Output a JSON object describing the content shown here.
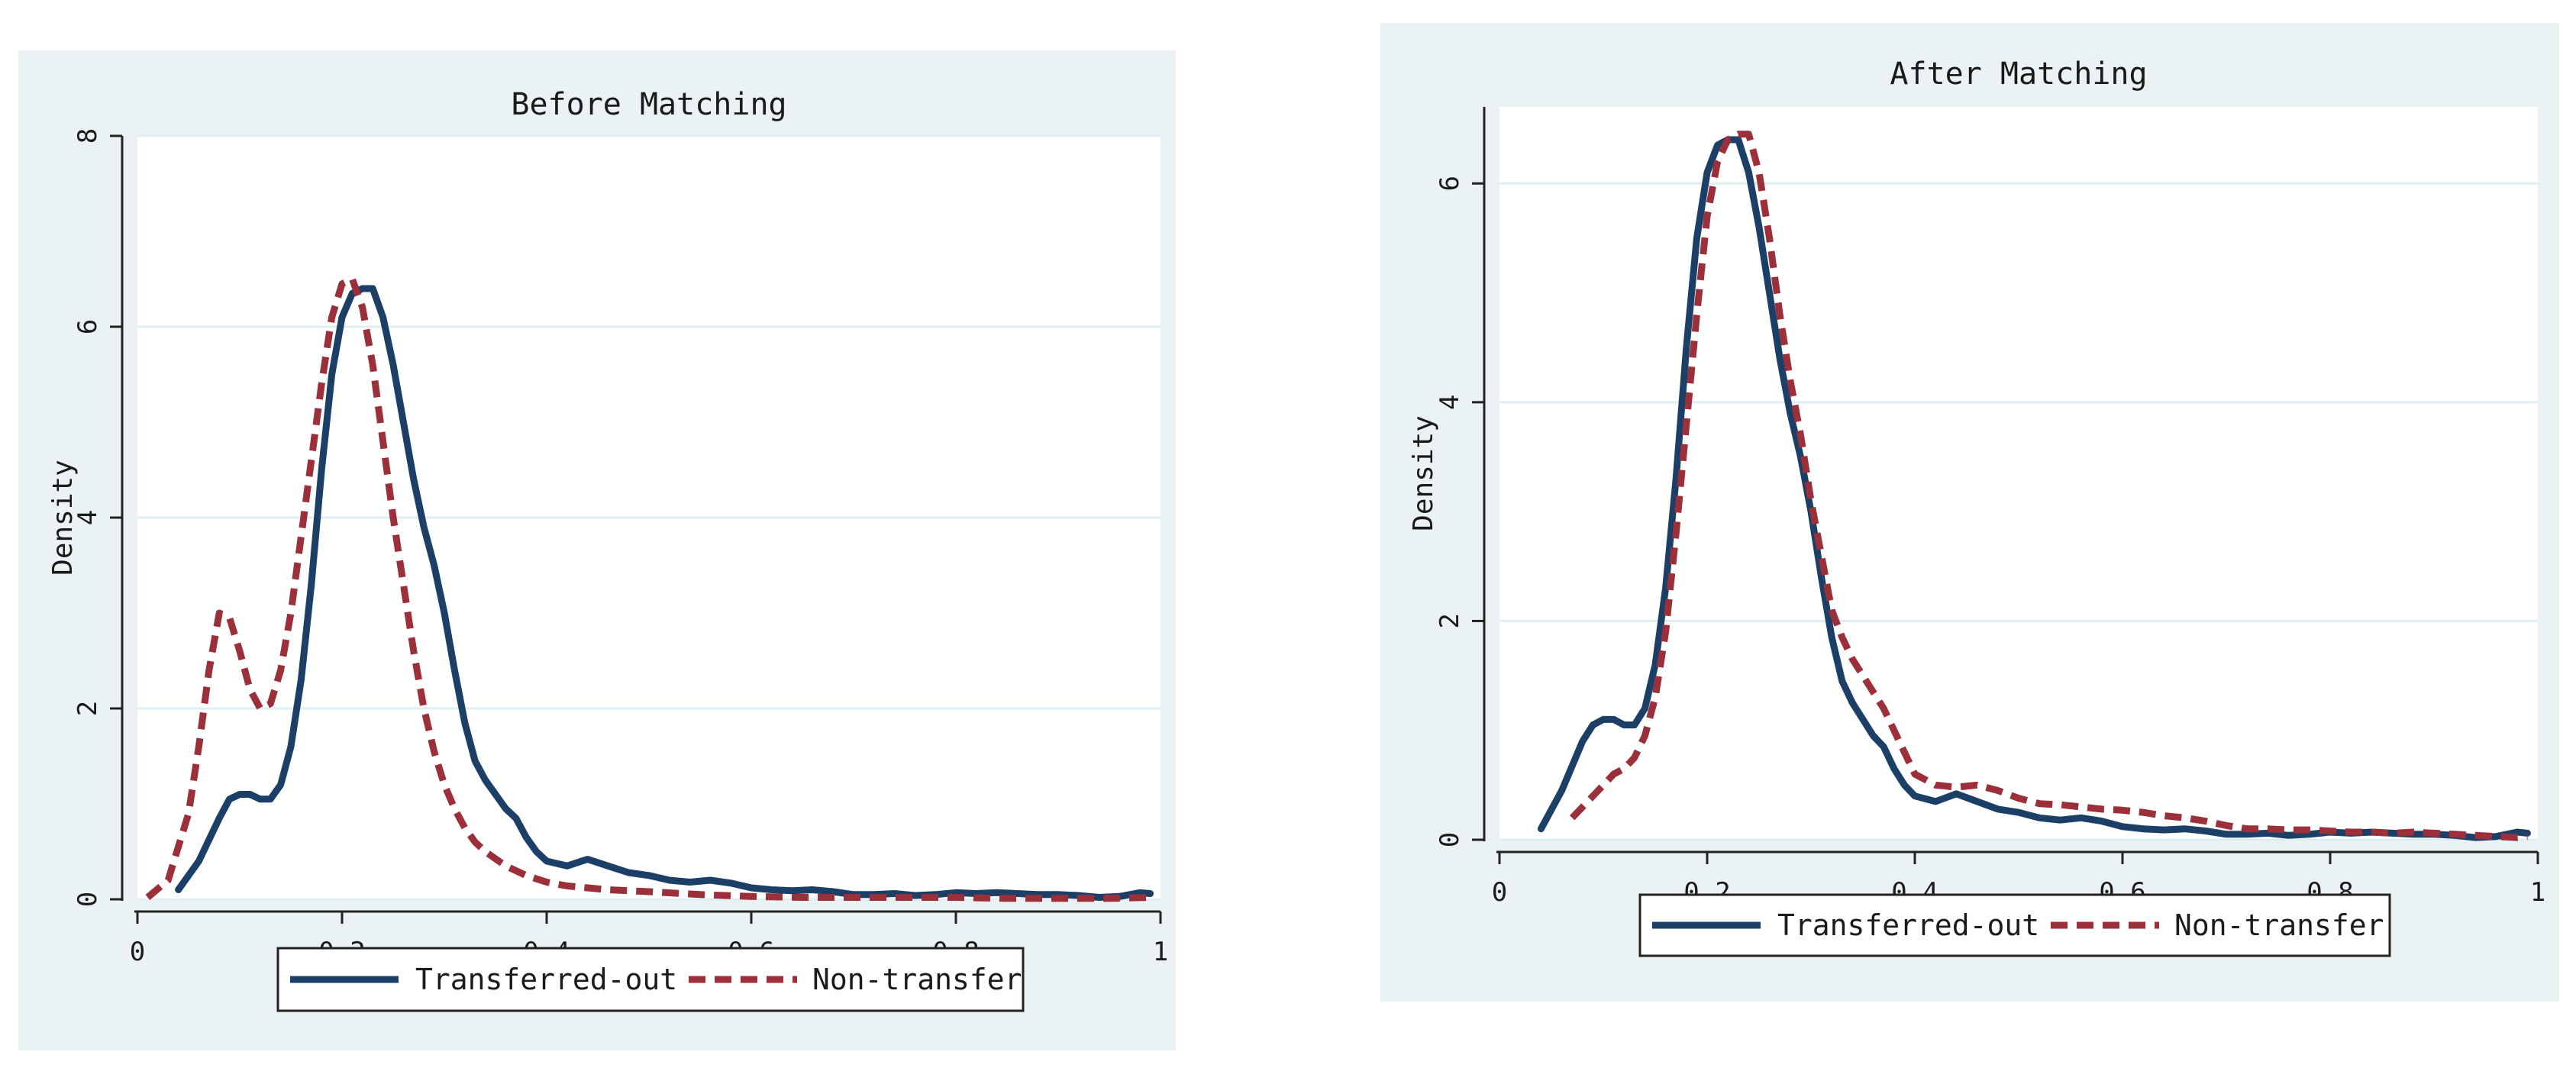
{
  "colors": {
    "panel_bg": "#eaf2f3",
    "plot_bg": "#ffffff",
    "grid": "#dfeef0",
    "transferred": "#1b3f66",
    "nontransfer": "#9b2f3a"
  },
  "chart_data": [
    {
      "type": "line",
      "title": "Before Matching",
      "xlabel": "",
      "ylabel": "Density",
      "xlim": [
        0,
        1
      ],
      "ylim": [
        0,
        8
      ],
      "xticks": [
        0,
        0.2,
        0.4,
        0.6,
        0.8,
        1
      ],
      "xtick_labels": [
        "0",
        "0.2",
        "0.4",
        "0.6",
        "0.8",
        "1"
      ],
      "yticks": [
        0,
        2,
        4,
        6,
        8
      ],
      "ytick_labels": [
        "0",
        "2",
        "4",
        "6",
        "8"
      ],
      "grid": true,
      "legend_position": "bottom",
      "series": [
        {
          "name": "Transferred-out",
          "color": "#1b3f66",
          "style": "solid",
          "x": [
            0.04,
            0.06,
            0.08,
            0.09,
            0.1,
            0.11,
            0.12,
            0.13,
            0.14,
            0.15,
            0.16,
            0.17,
            0.18,
            0.19,
            0.2,
            0.21,
            0.22,
            0.23,
            0.24,
            0.25,
            0.26,
            0.27,
            0.28,
            0.29,
            0.3,
            0.31,
            0.32,
            0.33,
            0.34,
            0.35,
            0.36,
            0.37,
            0.38,
            0.39,
            0.4,
            0.42,
            0.44,
            0.46,
            0.48,
            0.5,
            0.52,
            0.54,
            0.56,
            0.58,
            0.6,
            0.62,
            0.64,
            0.66,
            0.68,
            0.7,
            0.72,
            0.74,
            0.76,
            0.78,
            0.8,
            0.82,
            0.84,
            0.86,
            0.88,
            0.9,
            0.92,
            0.94,
            0.96,
            0.98,
            0.99
          ],
          "y": [
            0.1,
            0.4,
            0.85,
            1.05,
            1.1,
            1.1,
            1.05,
            1.05,
            1.2,
            1.6,
            2.3,
            3.3,
            4.5,
            5.5,
            6.1,
            6.35,
            6.4,
            6.4,
            6.1,
            5.6,
            5.0,
            4.4,
            3.9,
            3.5,
            3.0,
            2.4,
            1.85,
            1.45,
            1.25,
            1.1,
            0.95,
            0.85,
            0.65,
            0.5,
            0.4,
            0.35,
            0.42,
            0.35,
            0.28,
            0.25,
            0.2,
            0.18,
            0.2,
            0.17,
            0.12,
            0.1,
            0.09,
            0.1,
            0.08,
            0.05,
            0.05,
            0.06,
            0.04,
            0.05,
            0.07,
            0.06,
            0.07,
            0.06,
            0.05,
            0.05,
            0.04,
            0.02,
            0.03,
            0.07,
            0.06
          ]
        },
        {
          "name": "Non-transfer",
          "color": "#9b2f3a",
          "style": "dashed",
          "x": [
            0.01,
            0.03,
            0.05,
            0.06,
            0.07,
            0.08,
            0.09,
            0.1,
            0.11,
            0.12,
            0.13,
            0.14,
            0.15,
            0.16,
            0.17,
            0.18,
            0.19,
            0.2,
            0.21,
            0.22,
            0.23,
            0.24,
            0.25,
            0.26,
            0.27,
            0.28,
            0.29,
            0.3,
            0.31,
            0.32,
            0.33,
            0.34,
            0.36,
            0.38,
            0.4,
            0.42,
            0.44,
            0.46,
            0.5,
            0.55,
            0.6,
            0.65,
            0.7,
            0.75,
            0.8,
            0.85,
            0.9,
            0.95,
            0.99
          ],
          "y": [
            0.02,
            0.2,
            0.9,
            1.6,
            2.4,
            3.0,
            2.95,
            2.6,
            2.2,
            2.0,
            2.05,
            2.4,
            3.0,
            3.8,
            4.6,
            5.4,
            6.1,
            6.45,
            6.5,
            6.2,
            5.6,
            4.8,
            4.0,
            3.3,
            2.6,
            2.0,
            1.55,
            1.2,
            0.95,
            0.75,
            0.6,
            0.5,
            0.35,
            0.25,
            0.18,
            0.14,
            0.12,
            0.1,
            0.08,
            0.05,
            0.03,
            0.02,
            0.02,
            0.02,
            0.02,
            0.01,
            0.01,
            0.01,
            0.02
          ]
        }
      ]
    },
    {
      "type": "line",
      "title": "After Matching",
      "xlabel": "",
      "ylabel": "Density",
      "xlim": [
        0,
        1
      ],
      "ylim": [
        0,
        6.7
      ],
      "xticks": [
        0,
        0.2,
        0.4,
        0.6,
        0.8,
        1
      ],
      "xtick_labels": [
        "0",
        "0.2",
        "0.4",
        "0.6",
        "0.8",
        "1"
      ],
      "yticks": [
        0,
        2,
        4,
        6
      ],
      "ytick_labels": [
        "0",
        "2",
        "4",
        "6"
      ],
      "grid": true,
      "legend_position": "bottom",
      "series": [
        {
          "name": "Transferred-out",
          "color": "#1b3f66",
          "style": "solid",
          "x": [
            0.04,
            0.06,
            0.08,
            0.09,
            0.1,
            0.11,
            0.12,
            0.13,
            0.14,
            0.15,
            0.16,
            0.17,
            0.18,
            0.19,
            0.2,
            0.21,
            0.22,
            0.23,
            0.24,
            0.25,
            0.26,
            0.27,
            0.28,
            0.29,
            0.3,
            0.31,
            0.32,
            0.33,
            0.34,
            0.35,
            0.36,
            0.37,
            0.38,
            0.39,
            0.4,
            0.42,
            0.44,
            0.46,
            0.48,
            0.5,
            0.52,
            0.54,
            0.56,
            0.58,
            0.6,
            0.62,
            0.64,
            0.66,
            0.68,
            0.7,
            0.72,
            0.74,
            0.76,
            0.78,
            0.8,
            0.82,
            0.84,
            0.86,
            0.88,
            0.9,
            0.92,
            0.94,
            0.96,
            0.98,
            0.99
          ],
          "y": [
            0.1,
            0.45,
            0.9,
            1.05,
            1.1,
            1.1,
            1.05,
            1.05,
            1.2,
            1.6,
            2.3,
            3.3,
            4.5,
            5.5,
            6.1,
            6.35,
            6.4,
            6.4,
            6.1,
            5.6,
            5.0,
            4.4,
            3.9,
            3.5,
            3.0,
            2.4,
            1.85,
            1.45,
            1.25,
            1.1,
            0.95,
            0.85,
            0.65,
            0.5,
            0.4,
            0.35,
            0.42,
            0.35,
            0.28,
            0.25,
            0.2,
            0.18,
            0.2,
            0.17,
            0.12,
            0.1,
            0.09,
            0.1,
            0.08,
            0.05,
            0.05,
            0.06,
            0.04,
            0.05,
            0.07,
            0.06,
            0.07,
            0.06,
            0.05,
            0.05,
            0.04,
            0.02,
            0.03,
            0.07,
            0.06
          ]
        },
        {
          "name": "Non-transfer",
          "color": "#9b2f3a",
          "style": "dashed",
          "x": [
            0.07,
            0.09,
            0.1,
            0.11,
            0.12,
            0.13,
            0.14,
            0.15,
            0.16,
            0.17,
            0.18,
            0.19,
            0.2,
            0.21,
            0.22,
            0.23,
            0.24,
            0.25,
            0.26,
            0.27,
            0.28,
            0.29,
            0.3,
            0.31,
            0.32,
            0.33,
            0.34,
            0.35,
            0.36,
            0.37,
            0.38,
            0.39,
            0.4,
            0.42,
            0.44,
            0.46,
            0.48,
            0.5,
            0.52,
            0.54,
            0.56,
            0.58,
            0.6,
            0.62,
            0.64,
            0.66,
            0.68,
            0.7,
            0.72,
            0.74,
            0.76,
            0.78,
            0.8,
            0.82,
            0.84,
            0.86,
            0.88,
            0.9,
            0.92,
            0.94,
            0.96,
            0.98,
            0.99
          ],
          "y": [
            0.2,
            0.4,
            0.5,
            0.6,
            0.65,
            0.75,
            0.95,
            1.3,
            1.9,
            2.8,
            3.8,
            4.8,
            5.7,
            6.2,
            6.4,
            6.45,
            6.45,
            6.1,
            5.5,
            4.8,
            4.2,
            3.7,
            3.1,
            2.6,
            2.1,
            1.85,
            1.65,
            1.5,
            1.35,
            1.2,
            1.0,
            0.8,
            0.6,
            0.5,
            0.48,
            0.5,
            0.45,
            0.38,
            0.33,
            0.32,
            0.3,
            0.28,
            0.27,
            0.25,
            0.22,
            0.2,
            0.17,
            0.13,
            0.1,
            0.1,
            0.09,
            0.09,
            0.08,
            0.07,
            0.07,
            0.06,
            0.07,
            0.06,
            0.05,
            0.04,
            0.03,
            0.02,
            0.03
          ]
        }
      ]
    }
  ]
}
